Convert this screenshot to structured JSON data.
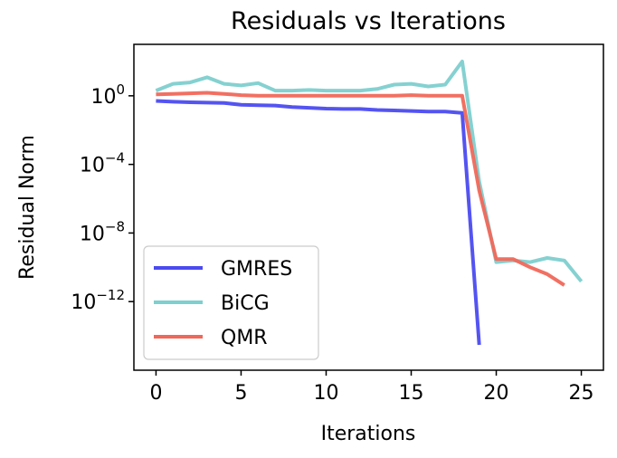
{
  "chart_data": {
    "type": "line",
    "title": "Residuals vs Iterations",
    "xlabel": "Iterations",
    "ylabel": "Residual Norm",
    "x_scale": "linear",
    "y_scale": "log",
    "xlim": [
      -1.3,
      26.3
    ],
    "ylim": [
      1e-16,
      1000.0
    ],
    "x_ticks": [
      0,
      5,
      10,
      15,
      20,
      25
    ],
    "x_tick_labels": [
      "0",
      "5",
      "10",
      "15",
      "20",
      "25"
    ],
    "y_ticks": [
      1,
      0.0001,
      1e-08,
      1e-12
    ],
    "y_tick_labels": [
      {
        "base": "10",
        "exp": "0"
      },
      {
        "base": "10",
        "exp": "−4"
      },
      {
        "base": "10",
        "exp": "−8"
      },
      {
        "base": "10",
        "exp": "−12"
      }
    ],
    "grid": false,
    "legend_position": "lower-left",
    "series": [
      {
        "name": "GMRES",
        "color": "#4b4bf0",
        "x": [
          0,
          1,
          2,
          3,
          4,
          5,
          6,
          7,
          8,
          9,
          10,
          11,
          12,
          13,
          14,
          15,
          16,
          17,
          18,
          19
        ],
        "y": [
          0.5,
          0.45,
          0.42,
          0.4,
          0.38,
          0.3,
          0.28,
          0.27,
          0.22,
          0.2,
          0.18,
          0.17,
          0.17,
          0.15,
          0.14,
          0.13,
          0.12,
          0.12,
          0.1,
          3e-15
        ]
      },
      {
        "name": "BiCG",
        "color": "#7ecfcf",
        "x": [
          0,
          1,
          2,
          3,
          4,
          5,
          6,
          7,
          8,
          9,
          10,
          11,
          12,
          13,
          14,
          15,
          16,
          17,
          18,
          19,
          20,
          21,
          22,
          23,
          24,
          25
        ],
        "y": [
          2.0,
          5.0,
          6.0,
          12.0,
          5.0,
          4.0,
          5.5,
          2.0,
          2.0,
          2.2,
          2.0,
          2.0,
          2.0,
          2.5,
          4.5,
          5.0,
          3.5,
          4.5,
          100.0,
          1e-05,
          2e-10,
          2.5e-10,
          2e-10,
          3.5e-10,
          2.5e-10,
          1.5e-11
        ]
      },
      {
        "name": "QMR",
        "color": "#f0685a",
        "x": [
          0,
          1,
          2,
          3,
          4,
          5,
          6,
          7,
          8,
          9,
          10,
          11,
          12,
          13,
          14,
          15,
          16,
          17,
          18,
          19,
          20,
          21,
          22,
          23,
          24
        ],
        "y": [
          1.2,
          1.3,
          1.4,
          1.5,
          1.3,
          1.1,
          1.0,
          1.0,
          1.0,
          1.0,
          1.0,
          1.0,
          1.0,
          1.0,
          1.0,
          1.1,
          1.0,
          1.0,
          1.0,
          3e-06,
          3e-10,
          3e-10,
          1e-10,
          4e-11,
          9e-12
        ]
      }
    ]
  }
}
